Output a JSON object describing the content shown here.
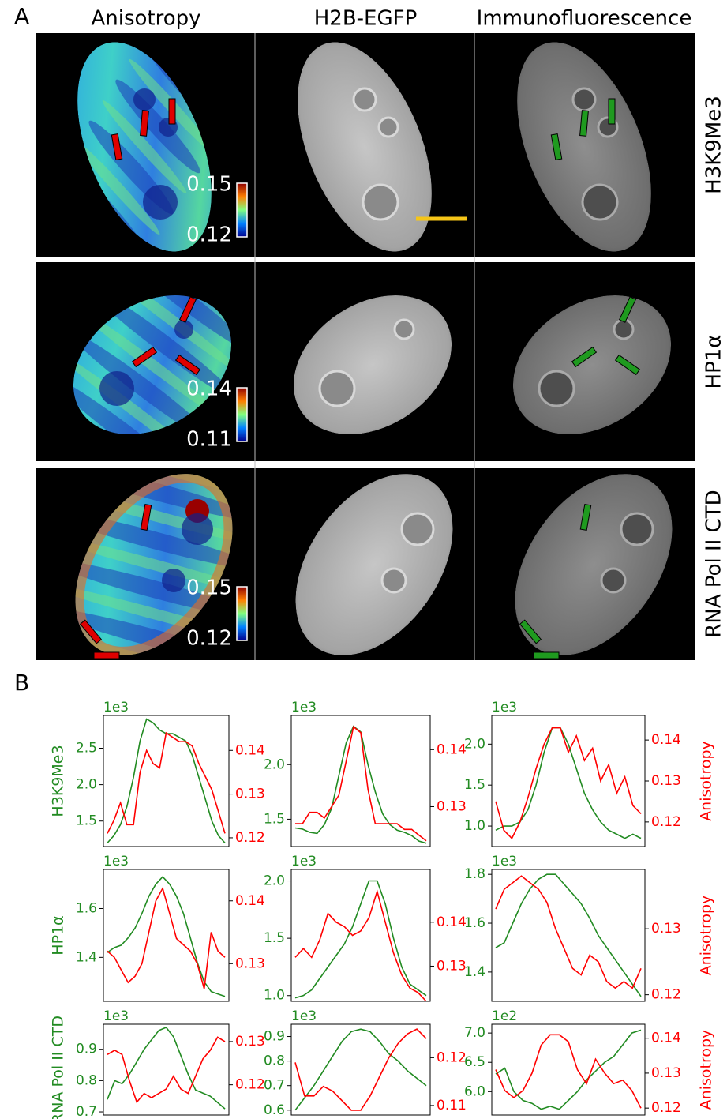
{
  "panel_a": {
    "label": "A",
    "columns": [
      "Anisotropy",
      "H2B-EGFP",
      "Immunofluorescence"
    ],
    "rows": [
      {
        "label": "H3K9Me3",
        "colorbar": [
          0.15,
          0.12
        ]
      },
      {
        "label": "HP1α",
        "colorbar": [
          0.14,
          0.11
        ]
      },
      {
        "label": "RNA Pol II CTD",
        "colorbar": [
          0.15,
          0.12
        ]
      }
    ]
  },
  "panel_b": {
    "label": "B"
  },
  "chart_data": [
    {
      "type": "line",
      "y_offset_label": "1e3",
      "ylabel": "H3K9Me3",
      "ylim": [
        1.15,
        2.95
      ],
      "yticks": [
        1.5,
        {
          "value": 2,
          "label": "2.0"
        },
        2.5
      ],
      "y2lim": [
        0.118,
        0.148
      ],
      "y2ticks": [
        0.12,
        0.13,
        0.14
      ],
      "series": [
        {
          "color": "#228b22",
          "values": [
            1.2,
            1.3,
            1.45,
            1.7,
            2.1,
            2.6,
            2.9,
            2.85,
            2.75,
            2.7,
            2.7,
            2.65,
            2.6,
            2.4,
            2.1,
            1.8,
            1.5,
            1.3,
            1.2
          ]
        },
        {
          "axis": "y2",
          "color": "#ff0000",
          "values": [
            0.121,
            0.124,
            0.128,
            0.123,
            0.123,
            0.135,
            0.14,
            0.137,
            0.136,
            0.144,
            0.143,
            0.142,
            0.142,
            0.141,
            0.137,
            0.134,
            0.131,
            0.126,
            0.121
          ]
        }
      ]
    },
    {
      "type": "line",
      "y_offset_label": "1e3",
      "ylim": [
        1.25,
        2.45
      ],
      "yticks": [
        1.5,
        {
          "value": 2,
          "label": "2.0"
        }
      ],
      "y2lim": [
        0.123,
        0.146
      ],
      "y2ticks": [
        0.13,
        0.14
      ],
      "series": [
        {
          "color": "#228b22",
          "values": [
            1.42,
            1.41,
            1.38,
            1.37,
            1.45,
            1.6,
            1.9,
            2.2,
            2.35,
            2.3,
            2.0,
            1.75,
            1.55,
            1.45,
            1.4,
            1.38,
            1.35,
            1.3,
            1.28
          ]
        },
        {
          "axis": "y2",
          "color": "#ff0000",
          "values": [
            0.127,
            0.127,
            0.129,
            0.129,
            0.128,
            0.13,
            0.132,
            0.138,
            0.144,
            0.143,
            0.133,
            0.127,
            0.127,
            0.127,
            0.127,
            0.126,
            0.126,
            0.125,
            0.124
          ]
        }
      ]
    },
    {
      "type": "line",
      "y_offset_label": "1e3",
      "y2label": "Anisotropy",
      "ylim": [
        0.75,
        2.35
      ],
      "yticks": [
        {
          "value": 1,
          "label": "1.0"
        },
        1.5,
        {
          "value": 2,
          "label": "2.0"
        }
      ],
      "y2lim": [
        0.114,
        0.146
      ],
      "y2ticks": [
        0.12,
        0.13,
        0.14
      ],
      "series": [
        {
          "color": "#228b22",
          "values": [
            0.95,
            1.0,
            1.0,
            1.05,
            1.2,
            1.5,
            1.9,
            2.2,
            2.2,
            2.0,
            1.7,
            1.4,
            1.2,
            1.05,
            0.95,
            0.9,
            0.85,
            0.9,
            0.85
          ]
        },
        {
          "axis": "y2",
          "color": "#ff0000",
          "values": [
            0.125,
            0.118,
            0.116,
            0.12,
            0.126,
            0.133,
            0.139,
            0.143,
            0.143,
            0.137,
            0.141,
            0.135,
            0.138,
            0.13,
            0.134,
            0.127,
            0.131,
            0.124,
            0.122
          ]
        }
      ]
    },
    {
      "type": "line",
      "y_offset_label": "1e3",
      "ylabel": "HP1α",
      "ylim": [
        1.22,
        1.76
      ],
      "yticks": [
        1.4,
        1.6
      ],
      "y2lim": [
        0.124,
        0.145
      ],
      "y2ticks": [
        0.13,
        0.14
      ],
      "series": [
        {
          "color": "#228b22",
          "values": [
            1.42,
            1.44,
            1.45,
            1.48,
            1.52,
            1.58,
            1.65,
            1.7,
            1.73,
            1.7,
            1.65,
            1.58,
            1.48,
            1.38,
            1.3,
            1.26,
            1.25,
            1.24
          ]
        },
        {
          "axis": "y2",
          "color": "#ff0000",
          "values": [
            0.132,
            0.131,
            0.129,
            0.127,
            0.128,
            0.13,
            0.135,
            0.14,
            0.142,
            0.138,
            0.134,
            0.133,
            0.132,
            0.13,
            0.126,
            0.135,
            0.132,
            0.131
          ]
        }
      ]
    },
    {
      "type": "line",
      "y_offset_label": "1e3",
      "ylim": [
        0.95,
        2.1
      ],
      "yticks": [
        {
          "value": 1,
          "label": "1.0"
        },
        1.5,
        {
          "value": 2,
          "label": "2.0"
        }
      ],
      "y2lim": [
        0.122,
        0.152
      ],
      "y2ticks": [
        0.13,
        0.14
      ],
      "series": [
        {
          "color": "#228b22",
          "values": [
            0.98,
            1.0,
            1.05,
            1.15,
            1.25,
            1.35,
            1.45,
            1.6,
            1.8,
            2.0,
            2.0,
            1.8,
            1.5,
            1.25,
            1.1,
            1.05,
            1.0
          ]
        },
        {
          "axis": "y2",
          "color": "#ff0000",
          "values": [
            0.132,
            0.134,
            0.132,
            0.136,
            0.142,
            0.14,
            0.139,
            0.137,
            0.138,
            0.141,
            0.147,
            0.14,
            0.133,
            0.128,
            0.125,
            0.124,
            0.122
          ]
        }
      ]
    },
    {
      "type": "line",
      "y_offset_label": "1e3",
      "y2label": "Anisotropy",
      "ylim": [
        1.28,
        1.82
      ],
      "yticks": [
        1.4,
        1.6,
        1.8
      ],
      "y2lim": [
        0.119,
        0.139
      ],
      "y2ticks": [
        0.12,
        0.13
      ],
      "series": [
        {
          "color": "#228b22",
          "values": [
            1.5,
            1.52,
            1.6,
            1.68,
            1.74,
            1.78,
            1.8,
            1.8,
            1.76,
            1.72,
            1.68,
            1.62,
            1.55,
            1.5,
            1.45,
            1.4,
            1.35,
            1.3
          ]
        },
        {
          "axis": "y2",
          "color": "#ff0000",
          "values": [
            0.133,
            0.136,
            0.137,
            0.138,
            0.137,
            0.136,
            0.134,
            0.13,
            0.127,
            0.124,
            0.123,
            0.126,
            0.125,
            0.122,
            0.121,
            0.122,
            0.121,
            0.124
          ]
        }
      ]
    },
    {
      "type": "line",
      "y_offset_label": "1e3",
      "ylabel": "RNA Pol II CTD",
      "ylim": [
        0.69,
        0.98
      ],
      "yticks": [
        0.7,
        0.8,
        0.9
      ],
      "y2lim": [
        0.113,
        0.134
      ],
      "y2ticks": [
        0.12,
        0.13
      ],
      "series": [
        {
          "color": "#228b22",
          "values": [
            0.74,
            0.8,
            0.79,
            0.82,
            0.86,
            0.9,
            0.93,
            0.96,
            0.97,
            0.94,
            0.88,
            0.82,
            0.77,
            0.76,
            0.75,
            0.73,
            0.71
          ]
        },
        {
          "axis": "y2",
          "color": "#ff0000",
          "values": [
            0.127,
            0.128,
            0.127,
            0.121,
            0.116,
            0.118,
            0.117,
            0.118,
            0.119,
            0.122,
            0.119,
            0.118,
            0.122,
            0.126,
            0.128,
            0.131,
            0.13
          ]
        }
      ]
    },
    {
      "type": "line",
      "y_offset_label": "1e3",
      "ylim": [
        0.58,
        0.95
      ],
      "yticks": [
        0.6,
        0.7,
        0.8,
        0.9
      ],
      "y2lim": [
        0.108,
        0.127
      ],
      "y2ticks": [
        0.11,
        0.12
      ],
      "series": [
        {
          "color": "#228b22",
          "values": [
            0.6,
            0.65,
            0.7,
            0.76,
            0.82,
            0.88,
            0.92,
            0.93,
            0.92,
            0.88,
            0.83,
            0.8,
            0.76,
            0.73,
            0.7
          ]
        },
        {
          "axis": "y2",
          "color": "#ff0000",
          "values": [
            0.119,
            0.112,
            0.112,
            0.114,
            0.113,
            0.111,
            0.109,
            0.109,
            0.112,
            0.116,
            0.12,
            0.123,
            0.125,
            0.126,
            0.124
          ]
        }
      ]
    },
    {
      "type": "line",
      "y_offset_label": "1e2",
      "y2label": "Anisotropy",
      "ylim": [
        5.6,
        7.15
      ],
      "yticks": [
        {
          "value": 6,
          "label": "6.0"
        },
        6.5,
        {
          "value": 7,
          "label": "7.0"
        }
      ],
      "y2lim": [
        0.118,
        0.144
      ],
      "y2ticks": [
        0.12,
        0.13,
        0.14
      ],
      "series": [
        {
          "color": "#228b22",
          "values": [
            6.3,
            6.4,
            6.0,
            5.85,
            5.8,
            5.7,
            5.75,
            5.7,
            5.85,
            6.0,
            6.2,
            6.35,
            6.5,
            6.6,
            6.8,
            7.0,
            7.05
          ]
        },
        {
          "axis": "y2",
          "color": "#ff0000",
          "values": [
            0.131,
            0.125,
            0.123,
            0.125,
            0.13,
            0.138,
            0.141,
            0.141,
            0.139,
            0.131,
            0.127,
            0.134,
            0.13,
            0.127,
            0.128,
            0.125,
            0.12
          ]
        }
      ]
    }
  ]
}
